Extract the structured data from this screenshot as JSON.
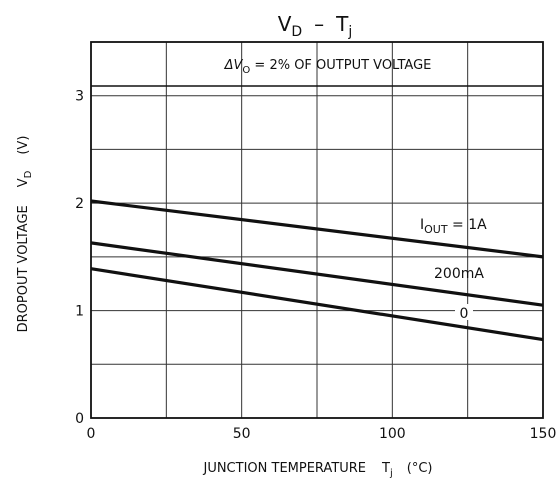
{
  "chart_data": {
    "type": "line",
    "title_main": "V",
    "title_main_sub": "D",
    "title_dash": "–",
    "title_var": "T",
    "title_var_sub": "j",
    "xlabel_text": "JUNCTION TEMPERATURE",
    "xlabel_var": "T",
    "xlabel_var_sub": "j",
    "xlabel_unit": "(°C)",
    "ylabel_text": "DROPOUT VOLTAGE",
    "ylabel_var": "V",
    "ylabel_var_sub": "D",
    "ylabel_unit": "(V)",
    "annotation": {
      "delta": "ΔV",
      "sub": "O",
      "rest": " = 2% OF OUTPUT VOLTAGE"
    },
    "xlim": [
      0,
      150
    ],
    "ylim": [
      0,
      3.5
    ],
    "x_ticks": [
      0,
      50,
      100,
      150
    ],
    "x_tick_labels": [
      "0",
      "50",
      "100",
      "150"
    ],
    "y_ticks": [
      0,
      1,
      2,
      3
    ],
    "y_tick_labels": [
      "0",
      "1",
      "2",
      "3"
    ],
    "x_grid": [
      25,
      50,
      75,
      100,
      125
    ],
    "y_grid": [
      0.5,
      1,
      1.5,
      2,
      2.5,
      3
    ],
    "grid": true,
    "series": [
      {
        "name": "IOUT = 1A",
        "label_main": "I",
        "label_sub": "OUT",
        "label_rest": " = 1A",
        "x": [
          0,
          150
        ],
        "y": [
          2.02,
          1.5
        ]
      },
      {
        "name": "200mA",
        "label_main": "200mA",
        "x": [
          0,
          150
        ],
        "y": [
          1.63,
          1.05
        ]
      },
      {
        "name": "0",
        "label_main": "0",
        "x": [
          0,
          150
        ],
        "y": [
          1.39,
          0.73
        ]
      }
    ]
  }
}
